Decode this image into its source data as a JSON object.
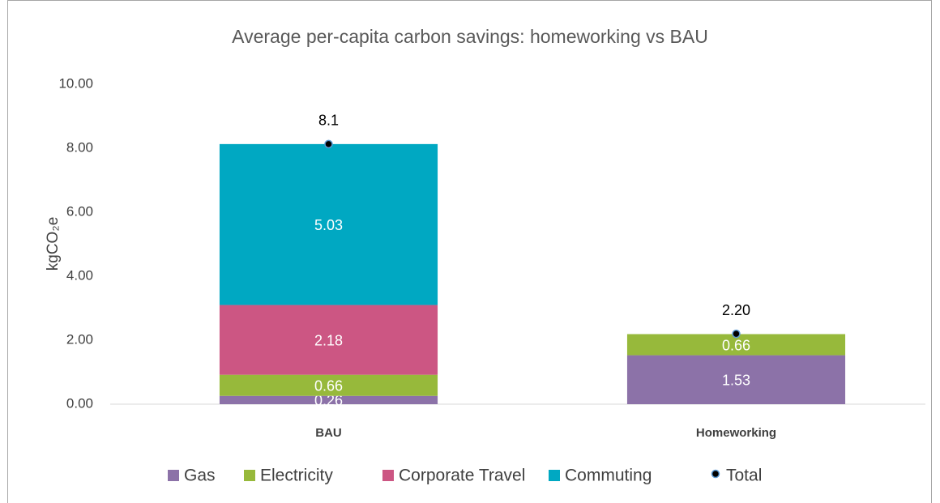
{
  "chart_data": {
    "type": "stacked-bar",
    "title": "Average per-capita carbon savings: homeworking vs BAU",
    "y_label": "kgCO₂e",
    "categories": [
      "BAU",
      "Homeworking"
    ],
    "series": [
      {
        "name": "Gas",
        "color": "#8c72a8",
        "values": [
          0.26,
          1.53
        ]
      },
      {
        "name": "Electricity",
        "color": "#97b93b",
        "values": [
          0.66,
          0.66
        ]
      },
      {
        "name": "Corporate Travel",
        "color": "#cc5683",
        "values": [
          2.18,
          null
        ]
      },
      {
        "name": "Commuting",
        "color": "#00a8c2",
        "values": [
          5.03,
          null
        ]
      }
    ],
    "total": {
      "name": "Total",
      "color": "#000000",
      "edge_color": "#5b9bd5",
      "values": [
        8.13,
        2.2
      ],
      "value_labels": [
        "8.1",
        "2.20"
      ]
    },
    "ylim": [
      0,
      10
    ],
    "yticks": [
      {
        "value": 0,
        "label": "0.00"
      },
      {
        "value": 2,
        "label": "2.00"
      },
      {
        "value": 4,
        "label": "4.00"
      },
      {
        "value": 6,
        "label": "6.00"
      },
      {
        "value": 8,
        "label": "8.00"
      },
      {
        "value": 10,
        "label": "10.00"
      }
    ],
    "grid": false,
    "legend": "bottom"
  }
}
